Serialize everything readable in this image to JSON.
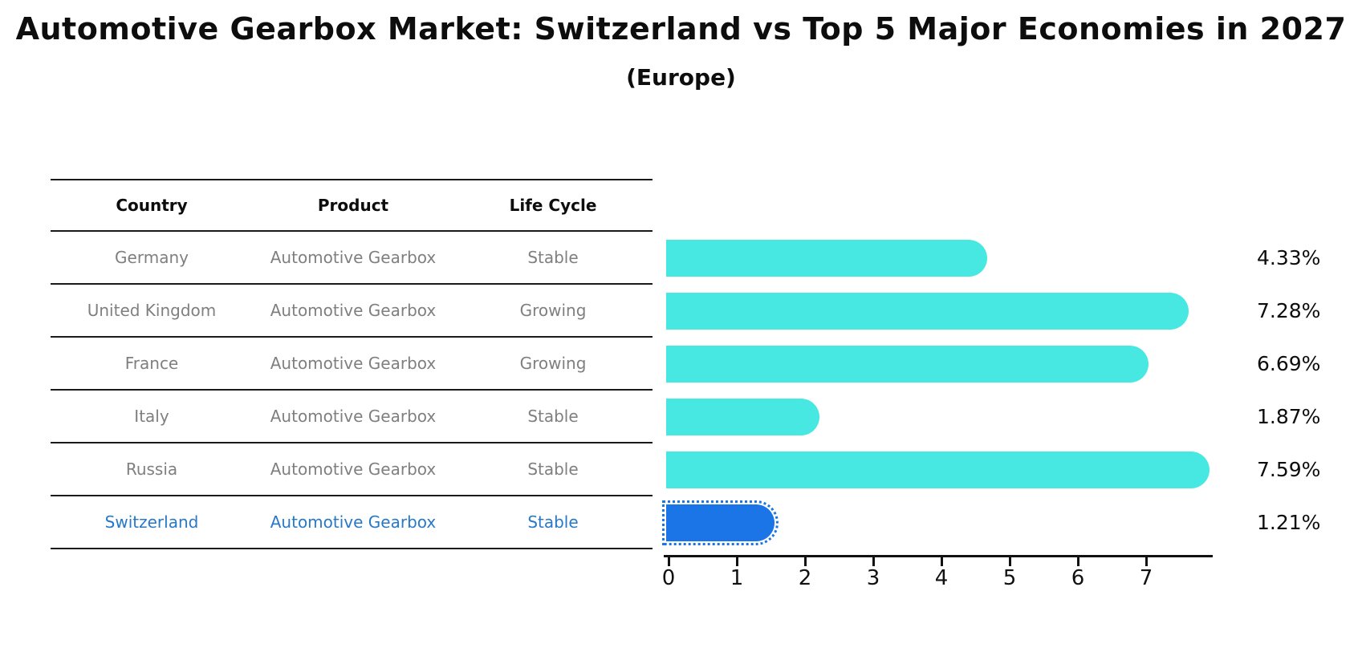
{
  "title": "Automotive Gearbox Market: Switzerland vs Top 5 Major Economies in 2027",
  "subtitle": "(Europe)",
  "table": {
    "headers": [
      "Country",
      "Product",
      "Life Cycle"
    ],
    "rows": [
      {
        "country": "Germany",
        "product": "Automotive Gearbox",
        "life_cycle": "Stable",
        "highlighted": false
      },
      {
        "country": "United Kingdom",
        "product": "Automotive Gearbox",
        "life_cycle": "Growing",
        "highlighted": false
      },
      {
        "country": "France",
        "product": "Automotive Gearbox",
        "life_cycle": "Growing",
        "highlighted": false
      },
      {
        "country": "Italy",
        "product": "Automotive Gearbox",
        "life_cycle": "Stable",
        "highlighted": false
      },
      {
        "country": "Russia",
        "product": "Automotive Gearbox",
        "life_cycle": "Stable",
        "highlighted": false
      },
      {
        "country": "Switzerland",
        "product": "Automotive Gearbox",
        "life_cycle": "Stable",
        "highlighted": true
      }
    ]
  },
  "chart_data": {
    "type": "bar",
    "orientation": "horizontal",
    "title": "Automotive Gearbox Market: Switzerland vs Top 5 Major Economies in 2027 (Europe)",
    "categories": [
      "Germany",
      "United Kingdom",
      "France",
      "Italy",
      "Russia",
      "Switzerland"
    ],
    "values": [
      4.33,
      7.28,
      6.69,
      1.87,
      7.59,
      1.21
    ],
    "value_labels": [
      "4.33%",
      "7.28%",
      "6.69%",
      "1.87%",
      "7.59%",
      "1.21%"
    ],
    "x_ticks": [
      0,
      1,
      2,
      3,
      4,
      5,
      6,
      7
    ],
    "xlim": [
      0,
      7.96
    ],
    "grid": false,
    "legend": null,
    "bar_color": "#48e8e2",
    "highlight_color": "#1b75e6",
    "highlight_index": 5
  },
  "colors": {
    "background": "#ffffff",
    "table_line": "#1a1a1a",
    "table_text": "#7f7f7f",
    "header_text": "#0d0d0d",
    "highlight_text": "#2878c8",
    "bar_cyan": "#48e8e2",
    "bar_blue": "#1b75e6"
  }
}
